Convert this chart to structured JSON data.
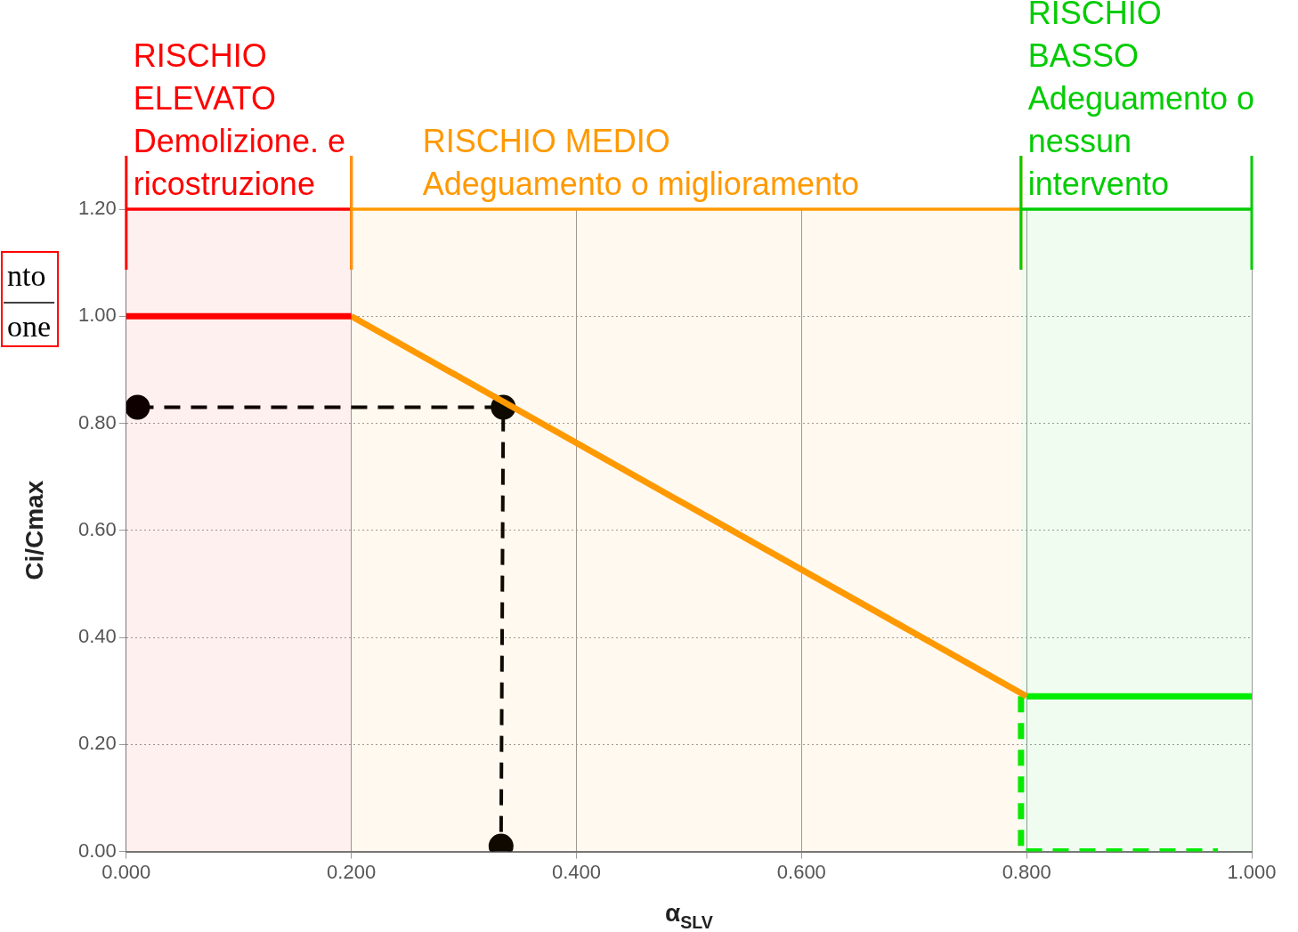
{
  "chart_data": {
    "type": "line",
    "xlabel": "α$_{SLV}$",
    "ylabel": "Ci/Cmax",
    "xlim": [
      0,
      1
    ],
    "ylim": [
      0,
      1.2
    ],
    "xticks": [
      {
        "value": 0,
        "label": "0.000"
      },
      {
        "value": 0.2,
        "label": "0.200"
      },
      {
        "value": 0.4,
        "label": "0.400"
      },
      {
        "value": 0.6,
        "label": "0.600"
      },
      {
        "value": 0.8,
        "label": "0.800"
      },
      {
        "value": 1,
        "label": "1.000"
      }
    ],
    "yticks": [
      {
        "value": 0,
        "label": "0.00"
      },
      {
        "value": 0.2,
        "label": "0.20"
      },
      {
        "value": 0.4,
        "label": "0.40"
      },
      {
        "value": 0.6,
        "label": "0.60"
      },
      {
        "value": 0.8,
        "label": "0.80"
      },
      {
        "value": 1,
        "label": "1.00"
      },
      {
        "value": 1.2,
        "label": "1.20"
      }
    ],
    "grid": true,
    "series": [
      {
        "color": "#ff0000",
        "x": [
          0,
          0.2
        ],
        "values": [
          1,
          1
        ],
        "marker": "none",
        "line_style": "solid"
      },
      {
        "color": "#ff9900",
        "x": [
          0.2,
          0.8
        ],
        "values": [
          1,
          0.29
        ],
        "marker": "none",
        "line_style": "solid"
      },
      {
        "color": "#00ee00",
        "x": [
          0.8,
          1
        ],
        "values": [
          0.29,
          0.29
        ],
        "marker": "none",
        "line_style": "solid"
      },
      {
        "color": "#00ee00",
        "x": [
          0.795,
          0.795,
          0.97
        ],
        "values": [
          0.29,
          0,
          0
        ],
        "marker": "none",
        "line_style": "dashed"
      },
      {
        "color": "#000000",
        "x": [
          0.01,
          0.335,
          0.333
        ],
        "values": [
          0.83,
          0.83,
          0.01
        ],
        "marker": "circle",
        "line_style": "dashed"
      }
    ],
    "bands": [
      {
        "axis": "x",
        "from": 0,
        "to": 0.2,
        "label": "RISCHIO\nELEVATO\nDemolizione. e\nricostruzione",
        "color": "#ff0000"
      },
      {
        "axis": "x",
        "from": 0.2,
        "to": 0.795,
        "label": "RISCHIO MEDIO\nAdeguamento o miglioramento",
        "color": "#ff9900"
      },
      {
        "axis": "x",
        "from": 0.795,
        "to": 1,
        "label": "RISCHIO\nBASSO\nAdeguamento o\nnessun\nintervento",
        "color": "#00cc00"
      }
    ],
    "annotations": [
      "nto\none"
    ]
  }
}
